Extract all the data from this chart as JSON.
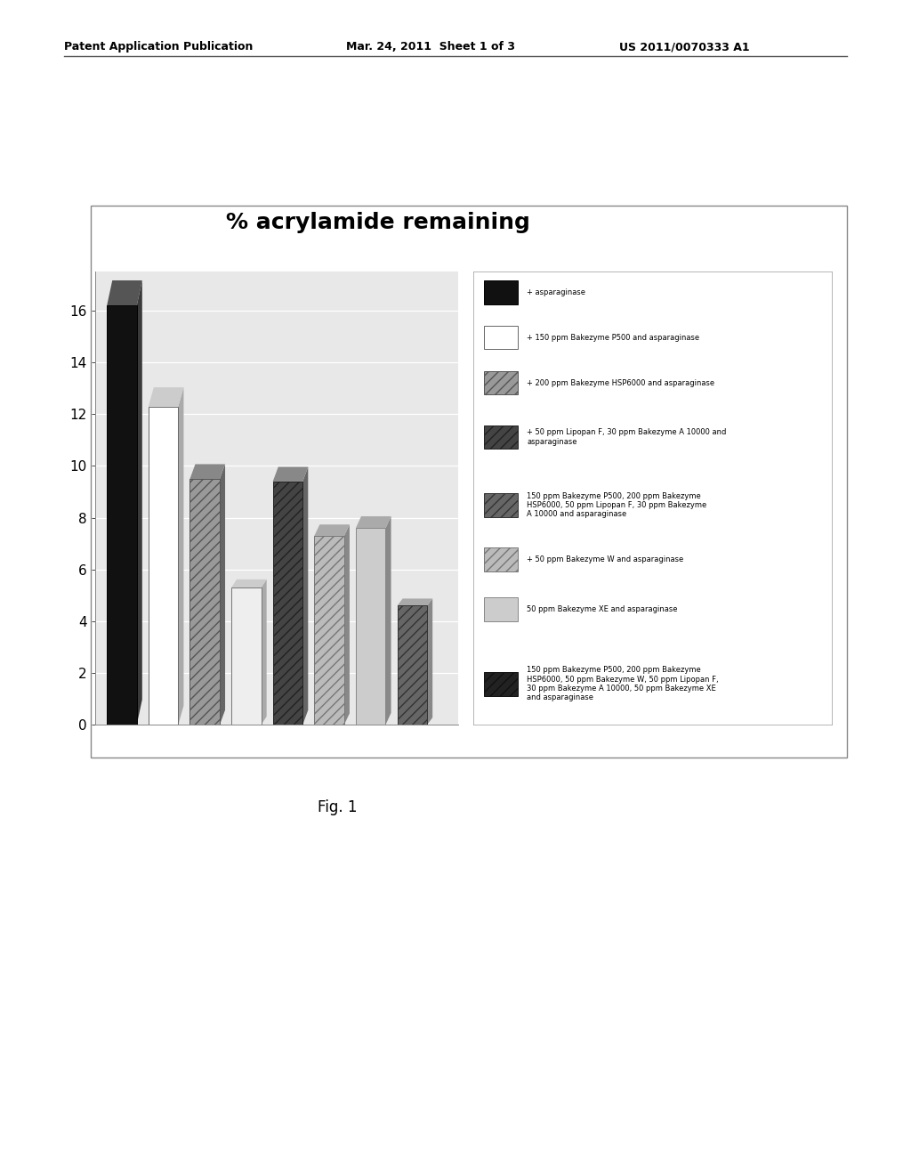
{
  "title": "% acrylamide remaining",
  "title_fontsize": 18,
  "title_fontweight": "bold",
  "bar_values": [
    16.2,
    12.3,
    9.5,
    5.3,
    9.4,
    7.3,
    7.6,
    4.6
  ],
  "bar_colors": [
    "#111111",
    "#ffffff",
    "#999999",
    "#eeeeee",
    "#444444",
    "#bbbbbb",
    "#cccccc",
    "#666666"
  ],
  "bar_edge_colors": [
    "#000000",
    "#666666",
    "#555555",
    "#777777",
    "#222222",
    "#777777",
    "#888888",
    "#333333"
  ],
  "bar_hatches": [
    null,
    null,
    "///",
    null,
    "///",
    "///",
    null,
    "///"
  ],
  "ylim": [
    0,
    17.5
  ],
  "yticks": [
    0,
    2,
    4,
    6,
    8,
    10,
    12,
    14,
    16
  ],
  "legend_labels": [
    "+ asparaginase",
    "+ 150 ppm Bakezyme P500 and asparaginase",
    "+ 200 ppm Bakezyme HSP6000 and asparaginase",
    "+ 50 ppm Lipopan F, 30 ppm Bakezyme A 10000 and\nasparaginase",
    "150 ppm Bakezyme P500, 200 ppm Bakezyme\nHSP6000, 50 ppm Lipopan F, 30 ppm Bakezyme\nA 10000 and asparaginase",
    "+ 50 ppm Bakezyme W and asparaginase",
    "50 ppm Bakezyme XE and asparaginase",
    "150 ppm Bakezyme P500, 200 ppm Bakezyme\nHSP6000, 50 ppm Bakezyme W, 50 ppm Lipopan F,\n30 ppm Bakezyme A 10000, 50 ppm Bakezyme XE\nand asparaginase"
  ],
  "legend_colors": [
    "#111111",
    "#ffffff",
    "#999999",
    "#444444",
    "#666666",
    "#bbbbbb",
    "#cccccc",
    "#222222"
  ],
  "legend_hatches": [
    null,
    null,
    "///",
    "///",
    "///",
    "///",
    null,
    "///"
  ],
  "legend_edge_colors": [
    "#000000",
    "#666666",
    "#555555",
    "#222222",
    "#333333",
    "#777777",
    "#888888",
    "#111111"
  ],
  "header_left": "Patent Application Publication",
  "header_mid": "Mar. 24, 2011  Sheet 1 of 3",
  "header_right": "US 2011/0070333 A1",
  "fig_label": "Fig. 1",
  "page_bg": "#ffffff",
  "chart_bg": "#e8e8e8",
  "chart_border": "#999999",
  "figsize": [
    10.24,
    13.2
  ],
  "dpi": 100
}
